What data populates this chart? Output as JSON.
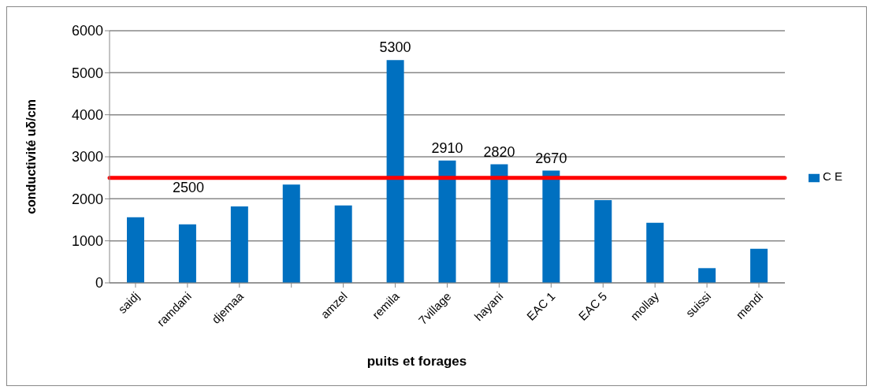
{
  "chart_data": {
    "type": "bar",
    "xlabel": "puits et forages",
    "ylabel": "conductivité uδ/cm",
    "categories": [
      "saidj",
      "ramdani",
      "djemaa",
      null,
      "amzel",
      "remila",
      "7village",
      "hayani",
      "EAC 1",
      "EAC 5",
      "mollay",
      "suissi",
      "mendi"
    ],
    "series": [
      {
        "name": "C E",
        "color": "#0070c0",
        "values": [
          1560,
          1390,
          1820,
          2340,
          1840,
          5300,
          2910,
          2820,
          2670,
          1970,
          1430,
          350,
          810
        ],
        "value_labels": [
          null,
          null,
          null,
          null,
          null,
          "5300",
          "2910",
          "2820",
          "2670",
          null,
          null,
          null,
          null
        ]
      }
    ],
    "ylim": [
      0,
      6000
    ],
    "yticks": [
      0,
      1000,
      2000,
      3000,
      4000,
      5000,
      6000
    ],
    "grid": "y",
    "legend": "right",
    "ref_lines": [
      {
        "axis": "y",
        "value": 2500,
        "label": "2500",
        "color": "#ff0000"
      }
    ]
  }
}
